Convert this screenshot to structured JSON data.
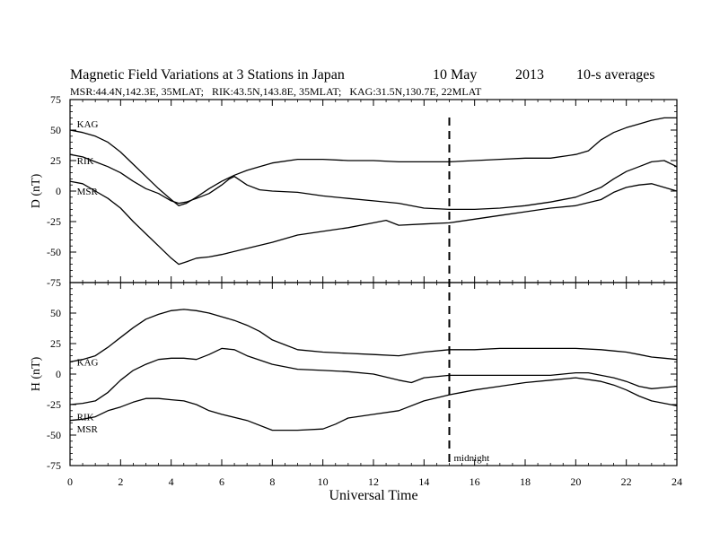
{
  "title": {
    "main": "Magnetic Field Variations at 3 Stations in Japan",
    "date": "10 May",
    "year": "2013",
    "averaging": "10-s averages"
  },
  "subtitle": "MSR:44.4N,142.3E, 35MLAT;   RIK:43.5N,143.8E, 35MLAT;   KAG:31.5N,130.7E, 22MLAT",
  "annotation": {
    "label": "midnight",
    "x": 15
  },
  "chart_data": {
    "type": "line",
    "xlabel": "Universal Time",
    "xlim": [
      0,
      24
    ],
    "xticks": [
      "0",
      "2",
      "4",
      "6",
      "8",
      "10",
      "12",
      "14",
      "16",
      "18",
      "20",
      "22",
      "24"
    ],
    "panels": [
      {
        "id": "D",
        "ylabel": "D (nT)",
        "ylim": [
          -75,
          75
        ],
        "yticks": [
          "75",
          "50",
          "25",
          "0",
          "-25",
          "-50",
          "-75"
        ],
        "station_labels": [
          {
            "name": "KAG",
            "x": 0.2,
            "y": 55
          },
          {
            "name": "RIK",
            "x": 0.2,
            "y": 25
          },
          {
            "name": "MSR",
            "x": 0.2,
            "y": 0
          }
        ],
        "series": [
          {
            "name": "KAG",
            "x": [
              0,
              0.5,
              1,
              1.5,
              2,
              2.5,
              3,
              3.5,
              4,
              4.3,
              4.6,
              5,
              5.5,
              6,
              6.5,
              7,
              7.5,
              8,
              9,
              10,
              11,
              12,
              13,
              14,
              15,
              16,
              17,
              18,
              19,
              20,
              20.5,
              21,
              21.5,
              22,
              22.5,
              23,
              23.5,
              24
            ],
            "y": [
              50,
              48,
              45,
              40,
              32,
              22,
              12,
              2,
              -7,
              -12,
              -10,
              -5,
              2,
              8,
              13,
              17,
              20,
              23,
              26,
              26,
              25,
              25,
              24,
              24,
              24,
              25,
              26,
              27,
              27,
              30,
              33,
              42,
              48,
              52,
              55,
              58,
              60,
              60
            ]
          },
          {
            "name": "RIK",
            "x": [
              0,
              0.5,
              1,
              1.5,
              2,
              2.5,
              3,
              3.5,
              4,
              4.3,
              4.6,
              5,
              5.5,
              6,
              6.3,
              6.5,
              7,
              7.5,
              8,
              9,
              10,
              11,
              12,
              13,
              14,
              15,
              16,
              17,
              18,
              19,
              20,
              21,
              21.5,
              22,
              22.5,
              23,
              23.5,
              24
            ],
            "y": [
              30,
              28,
              24,
              20,
              15,
              8,
              2,
              -2,
              -8,
              -10,
              -9,
              -6,
              -2,
              5,
              10,
              12,
              5,
              1,
              0,
              -1,
              -4,
              -6,
              -8,
              -10,
              -14,
              -15,
              -15,
              -14,
              -12,
              -9,
              -5,
              3,
              10,
              16,
              20,
              24,
              25,
              20
            ]
          },
          {
            "name": "MSR",
            "x": [
              0,
              0.5,
              1,
              1.5,
              2,
              2.5,
              3,
              3.5,
              4,
              4.3,
              4.6,
              5,
              5.5,
              6,
              7,
              8,
              9,
              10,
              11,
              12,
              12.5,
              13,
              14,
              15,
              16,
              17,
              18,
              19,
              20,
              21,
              21.5,
              22,
              22.5,
              23,
              23.5,
              24
            ],
            "y": [
              8,
              6,
              0,
              -6,
              -14,
              -25,
              -35,
              -45,
              -55,
              -60,
              -58,
              -55,
              -54,
              -52,
              -47,
              -42,
              -36,
              -33,
              -30,
              -26,
              -24,
              -28,
              -27,
              -26,
              -23,
              -20,
              -17,
              -14,
              -12,
              -7,
              -1,
              3,
              5,
              6,
              3,
              0
            ]
          }
        ]
      },
      {
        "id": "H",
        "ylabel": "H (nT)",
        "ylim": [
          -75,
          75
        ],
        "yticks": [
          "75",
          "50",
          "25",
          "0",
          "-25",
          "-50",
          "-75"
        ],
        "station_labels": [
          {
            "name": "KAG",
            "x": 0.2,
            "y": 10
          },
          {
            "name": "RIK",
            "x": 0.2,
            "y": -35
          },
          {
            "name": "MSR",
            "x": 0.2,
            "y": -45
          }
        ],
        "series": [
          {
            "name": "KAG",
            "x": [
              0,
              0.5,
              1,
              1.5,
              2,
              2.5,
              3,
              3.5,
              4,
              4.5,
              5,
              5.5,
              6,
              6.5,
              7,
              7.5,
              8,
              8.5,
              9,
              10,
              11,
              12,
              13,
              14,
              15,
              16,
              17,
              18,
              19,
              20,
              21,
              21.5,
              22,
              22.5,
              23,
              23.5,
              24
            ],
            "y": [
              10,
              12,
              15,
              22,
              30,
              38,
              45,
              49,
              52,
              53,
              52,
              50,
              47,
              44,
              40,
              35,
              28,
              24,
              20,
              18,
              17,
              16,
              15,
              18,
              20,
              20,
              21,
              21,
              21,
              21,
              20,
              19,
              18,
              16,
              14,
              13,
              12
            ]
          },
          {
            "name": "RIK",
            "x": [
              0,
              0.5,
              1,
              1.5,
              2,
              2.5,
              3,
              3.5,
              4,
              4.5,
              5,
              5.5,
              6,
              6.5,
              7,
              8,
              9,
              10,
              11,
              12,
              13,
              13.5,
              14,
              15,
              16,
              17,
              18,
              19,
              20,
              20.5,
              21,
              21.5,
              22,
              22.5,
              23,
              23.5,
              24
            ],
            "y": [
              -25,
              -24,
              -22,
              -15,
              -5,
              3,
              8,
              12,
              13,
              13,
              12,
              16,
              21,
              20,
              15,
              8,
              4,
              3,
              2,
              0,
              -5,
              -7,
              -3,
              -1,
              -1,
              -1,
              -1,
              -1,
              1,
              1,
              -1,
              -3,
              -6,
              -10,
              -12,
              -11,
              -10
            ]
          },
          {
            "name": "MSR",
            "x": [
              0,
              0.5,
              1,
              1.5,
              2,
              2.5,
              3,
              3.5,
              4,
              4.5,
              5,
              5.5,
              6,
              7,
              8,
              9,
              10,
              10.5,
              11,
              12,
              13,
              14,
              15,
              16,
              17,
              18,
              19,
              20,
              21,
              21.5,
              22,
              22.5,
              23,
              23.5,
              24
            ],
            "y": [
              -38,
              -37,
              -35,
              -30,
              -27,
              -23,
              -20,
              -20,
              -21,
              -22,
              -25,
              -30,
              -33,
              -38,
              -46,
              -46,
              -45,
              -41,
              -36,
              -33,
              -30,
              -22,
              -17,
              -13,
              -10,
              -7,
              -5,
              -3,
              -6,
              -9,
              -13,
              -18,
              -22,
              -24,
              -26
            ]
          }
        ]
      }
    ]
  }
}
